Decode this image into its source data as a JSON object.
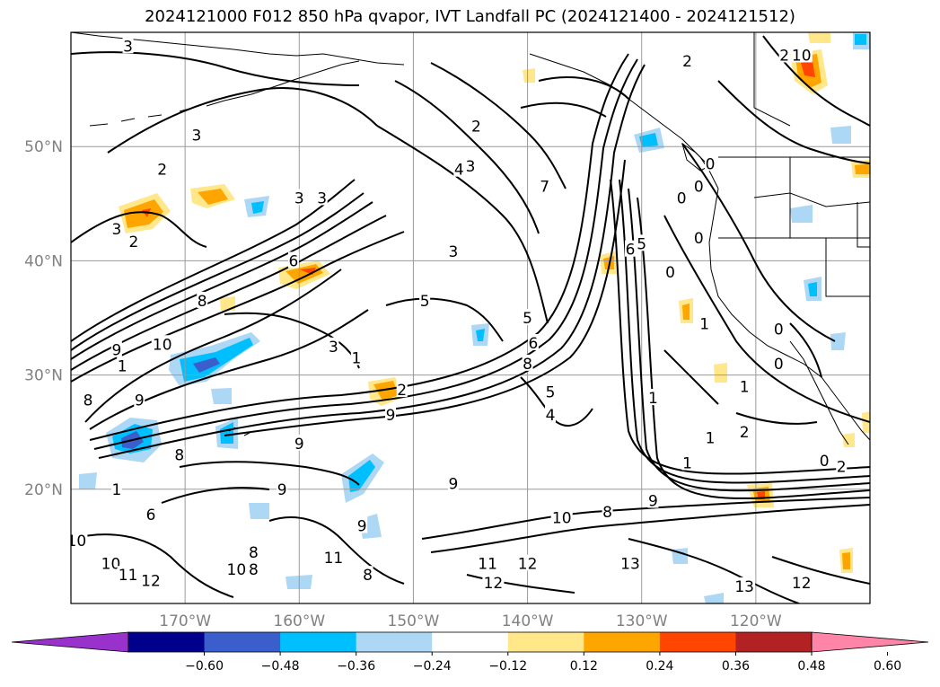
{
  "title": "2024121000 F012 850 hPa qvapor, IVT Landfall PC (2024121400 - 2024121512)",
  "map": {
    "lat_ticks": [
      "50°N",
      "40°N",
      "30°N",
      "20°N"
    ],
    "lon_ticks": [
      "170°W",
      "160°W",
      "150°W",
      "140°W",
      "130°W",
      "120°W"
    ],
    "lat_range": [
      10,
      60
    ],
    "lon_range": [
      -180,
      -110
    ],
    "grid": true
  },
  "colorbar": {
    "tick_labels": [
      "-0.60",
      "-0.48",
      "-0.36",
      "-0.24",
      "-0.12",
      "0.12",
      "0.24",
      "0.36",
      "0.48",
      "0.60"
    ],
    "colors": [
      "#9932cc",
      "#00008b",
      "#3a5fcd",
      "#00bfff",
      "#add8f5",
      "#ffffff",
      "#ffe78a",
      "#ffa500",
      "#ff4500",
      "#b22222",
      "#ff85a8"
    ],
    "extend": "both"
  },
  "contour_labels": [
    {
      "t": "3",
      "lon": -175.0,
      "lat": 58.8
    },
    {
      "t": "3",
      "lon": -169.0,
      "lat": 51.0
    },
    {
      "t": "2",
      "lon": -172.0,
      "lat": 48.0
    },
    {
      "t": "2",
      "lon": -174.5,
      "lat": 41.7
    },
    {
      "t": "3",
      "lon": -176.0,
      "lat": 42.8
    },
    {
      "t": "3",
      "lon": -160.0,
      "lat": 45.5
    },
    {
      "t": "3",
      "lon": -158.0,
      "lat": 45.5
    },
    {
      "t": "2",
      "lon": -144.5,
      "lat": 51.8
    },
    {
      "t": "4",
      "lon": -146.0,
      "lat": 48.0
    },
    {
      "t": "3",
      "lon": -145.0,
      "lat": 48.3
    },
    {
      "t": "7",
      "lon": -138.5,
      "lat": 46.5
    },
    {
      "t": "3",
      "lon": -146.5,
      "lat": 40.8
    },
    {
      "t": "6",
      "lon": -160.5,
      "lat": 40.0
    },
    {
      "t": "8",
      "lon": -168.5,
      "lat": 36.5
    },
    {
      "t": "5",
      "lon": -149.0,
      "lat": 36.5
    },
    {
      "t": "5",
      "lon": -140.0,
      "lat": 35.0
    },
    {
      "t": "3",
      "lon": -157.0,
      "lat": 32.5
    },
    {
      "t": "9",
      "lon": -176.0,
      "lat": 32.2
    },
    {
      "t": "10",
      "lon": -172.0,
      "lat": 32.7
    },
    {
      "t": "1",
      "lon": -155.0,
      "lat": 31.5
    },
    {
      "t": "1",
      "lon": -175.5,
      "lat": 30.8
    },
    {
      "t": "2",
      "lon": -151.0,
      "lat": 28.7
    },
    {
      "t": "8",
      "lon": -178.5,
      "lat": 27.8
    },
    {
      "t": "9",
      "lon": -174.0,
      "lat": 27.8
    },
    {
      "t": "8",
      "lon": -140.0,
      "lat": 31.0
    },
    {
      "t": "6",
      "lon": -139.5,
      "lat": 32.8
    },
    {
      "t": "5",
      "lon": -138.0,
      "lat": 28.5
    },
    {
      "t": "4",
      "lon": -138.0,
      "lat": 26.5
    },
    {
      "t": "9",
      "lon": -152.0,
      "lat": 26.5
    },
    {
      "t": "9",
      "lon": -160.0,
      "lat": 24.0
    },
    {
      "t": "8",
      "lon": -170.5,
      "lat": 23.0
    },
    {
      "t": "9",
      "lon": -146.5,
      "lat": 20.5
    },
    {
      "t": "9",
      "lon": -161.5,
      "lat": 20.0
    },
    {
      "t": "9",
      "lon": -154.5,
      "lat": 16.8
    },
    {
      "t": "6",
      "lon": -173.0,
      "lat": 17.8
    },
    {
      "t": "1",
      "lon": -176.0,
      "lat": 20.0
    },
    {
      "t": "10",
      "lon": -179.5,
      "lat": 15.5
    },
    {
      "t": "10",
      "lon": -176.5,
      "lat": 13.5
    },
    {
      "t": "11",
      "lon": -175.0,
      "lat": 12.5
    },
    {
      "t": "12",
      "lon": -173.0,
      "lat": 12.0
    },
    {
      "t": "10",
      "lon": -165.5,
      "lat": 13.0
    },
    {
      "t": "8",
      "lon": -164.0,
      "lat": 13.0
    },
    {
      "t": "8",
      "lon": -164.0,
      "lat": 14.5
    },
    {
      "t": "11",
      "lon": -157.0,
      "lat": 14.0
    },
    {
      "t": "8",
      "lon": -154.0,
      "lat": 12.5
    },
    {
      "t": "10",
      "lon": -137.0,
      "lat": 17.5
    },
    {
      "t": "8",
      "lon": -133.0,
      "lat": 18.0
    },
    {
      "t": "9",
      "lon": -129.0,
      "lat": 19.0
    },
    {
      "t": "11",
      "lon": -143.5,
      "lat": 13.5
    },
    {
      "t": "12",
      "lon": -140.0,
      "lat": 13.5
    },
    {
      "t": "12",
      "lon": -143.0,
      "lat": 11.8
    },
    {
      "t": "13",
      "lon": -131.0,
      "lat": 13.5
    },
    {
      "t": "13",
      "lon": -121.0,
      "lat": 11.5
    },
    {
      "t": "12",
      "lon": -116.0,
      "lat": 11.8
    },
    {
      "t": "1",
      "lon": -129.0,
      "lat": 28.0
    },
    {
      "t": "1",
      "lon": -124.0,
      "lat": 24.5
    },
    {
      "t": "1",
      "lon": -126.0,
      "lat": 22.3
    },
    {
      "t": "2",
      "lon": -121.0,
      "lat": 25.0
    },
    {
      "t": "1",
      "lon": -124.5,
      "lat": 34.5
    },
    {
      "t": "1",
      "lon": -121.0,
      "lat": 29.0
    },
    {
      "t": "0",
      "lon": -127.5,
      "lat": 39.0
    },
    {
      "t": "0",
      "lon": -126.5,
      "lat": 45.5
    },
    {
      "t": "0",
      "lon": -125.0,
      "lat": 46.5
    },
    {
      "t": "0",
      "lon": -118.0,
      "lat": 34.0
    },
    {
      "t": "0",
      "lon": -118.0,
      "lat": 31.0
    },
    {
      "t": "0",
      "lon": -114.0,
      "lat": 22.5
    },
    {
      "t": "2",
      "lon": -112.5,
      "lat": 22.0
    },
    {
      "t": "2",
      "lon": -126.0,
      "lat": 57.5
    },
    {
      "t": "2",
      "lon": -117.5,
      "lat": 58.0
    },
    {
      "t": "10",
      "lon": -116.0,
      "lat": 58.0
    },
    {
      "t": "0",
      "lon": -124.0,
      "lat": 48.5
    },
    {
      "t": "6",
      "lon": -131.0,
      "lat": 41.0
    },
    {
      "t": "5",
      "lon": -130.0,
      "lat": 41.5
    },
    {
      "t": "0",
      "lon": -125.0,
      "lat": 42.0
    }
  ]
}
